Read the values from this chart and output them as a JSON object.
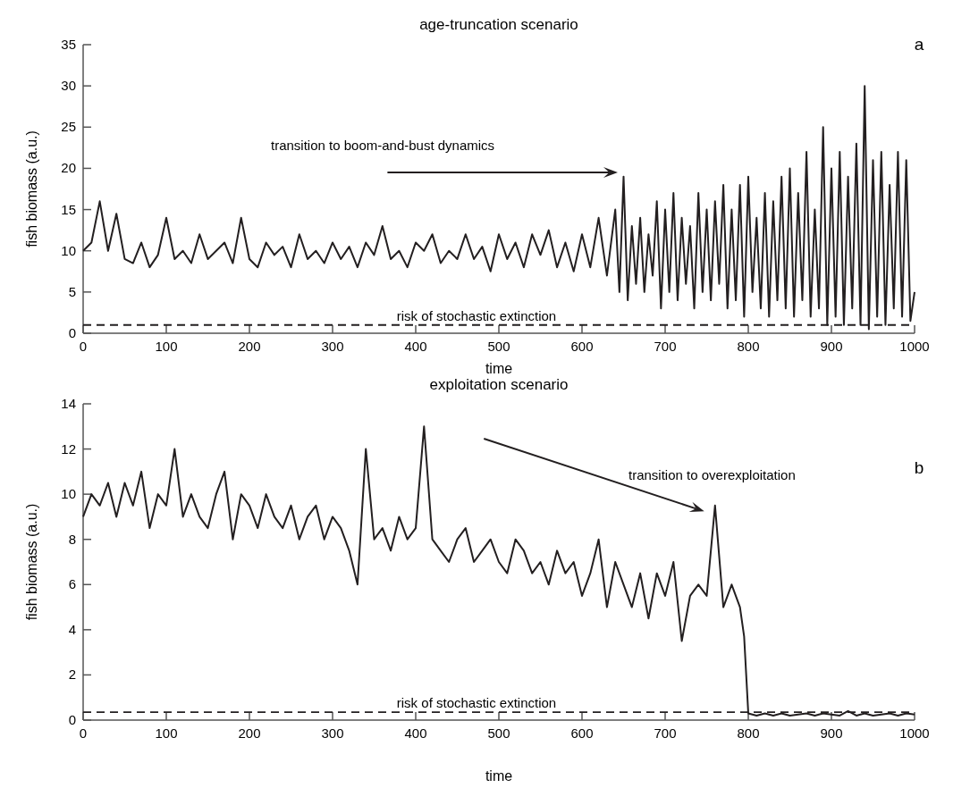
{
  "chart_data": [
    {
      "type": "line",
      "title": "age-truncation scenario",
      "xlabel": "time",
      "ylabel": "fish biomass (a.u.)",
      "annotations": [
        "transition to boom-and-bust dynamics",
        "a"
      ],
      "xlim": [
        0,
        1000
      ],
      "xticks": [
        0,
        100,
        200,
        300,
        400,
        500,
        600,
        700,
        800,
        900,
        1000
      ],
      "ylim": [
        0,
        35
      ],
      "yticks": [
        0,
        5,
        10,
        15,
        20,
        25,
        30,
        35
      ],
      "grid": false,
      "line_style": "solid",
      "ref_lines": [
        {
          "axis": "y",
          "value": 1,
          "label": "risk of stochastic extinction",
          "line_style": "dashed",
          "color": "#231f20"
        }
      ],
      "series": [
        {
          "color": "#231f20",
          "x": [
            0,
            10,
            20,
            30,
            40,
            50,
            60,
            70,
            80,
            90,
            100,
            110,
            120,
            130,
            140,
            150,
            160,
            170,
            180,
            190,
            200,
            210,
            220,
            230,
            240,
            250,
            260,
            270,
            280,
            290,
            300,
            310,
            320,
            330,
            340,
            350,
            360,
            370,
            380,
            390,
            400,
            410,
            420,
            430,
            440,
            450,
            460,
            470,
            480,
            490,
            500,
            510,
            520,
            530,
            540,
            550,
            560,
            570,
            580,
            590,
            600,
            610,
            620,
            630,
            640,
            645,
            650,
            655,
            660,
            665,
            670,
            675,
            680,
            685,
            690,
            695,
            700,
            705,
            710,
            715,
            720,
            725,
            730,
            735,
            740,
            745,
            750,
            755,
            760,
            765,
            770,
            775,
            780,
            785,
            790,
            795,
            800,
            805,
            810,
            815,
            820,
            825,
            830,
            835,
            840,
            845,
            850,
            855,
            860,
            865,
            870,
            875,
            880,
            885,
            890,
            895,
            900,
            905,
            910,
            915,
            920,
            925,
            930,
            935,
            940,
            945,
            950,
            955,
            960,
            965,
            970,
            975,
            980,
            985,
            990,
            995,
            1000
          ],
          "values": [
            10,
            11,
            16,
            10,
            14.5,
            9,
            8.5,
            11,
            8,
            9.5,
            14,
            9,
            10,
            8.5,
            12,
            9,
            10,
            11,
            8.5,
            14,
            9,
            8,
            11,
            9.5,
            10.5,
            8,
            12,
            9,
            10,
            8.5,
            11,
            9,
            10.5,
            8,
            11,
            9.5,
            13,
            9,
            10,
            8,
            11,
            10,
            12,
            8.5,
            10,
            9,
            12,
            9,
            10.5,
            7.5,
            12,
            9,
            11,
            8,
            12,
            9.5,
            12.5,
            8,
            11,
            7.5,
            12,
            8,
            14,
            7,
            15,
            5,
            19,
            4,
            13,
            6,
            14,
            5,
            12,
            7,
            16,
            3,
            15,
            5,
            17,
            4,
            14,
            6,
            13,
            3,
            17,
            5,
            15,
            4,
            16,
            6,
            18,
            3,
            15,
            4,
            18,
            2,
            19,
            5,
            14,
            3,
            17,
            2,
            16,
            4,
            19,
            3,
            20,
            2,
            17,
            4,
            22,
            2,
            15,
            3,
            25,
            1,
            20,
            2,
            22,
            1,
            19,
            3,
            23,
            1,
            30,
            0.5,
            21,
            2,
            22,
            1,
            18,
            3,
            22,
            2,
            21,
            1.5,
            5
          ]
        }
      ]
    },
    {
      "type": "line",
      "title": "exploitation scenario",
      "xlabel": "time",
      "ylabel": "fish biomass (a.u.)",
      "annotations": [
        "transition to overexploitation",
        "b"
      ],
      "xlim": [
        0,
        1000
      ],
      "xticks": [
        0,
        100,
        200,
        300,
        400,
        500,
        600,
        700,
        800,
        900,
        1000
      ],
      "ylim": [
        0,
        14
      ],
      "yticks": [
        0,
        2,
        4,
        6,
        8,
        10,
        12,
        14
      ],
      "grid": false,
      "line_style": "solid",
      "ref_lines": [
        {
          "axis": "y",
          "value": 0.35,
          "label": "risk of stochastic extinction",
          "line_style": "dashed",
          "color": "#231f20"
        }
      ],
      "series": [
        {
          "color": "#231f20",
          "x": [
            0,
            10,
            20,
            30,
            40,
            50,
            60,
            70,
            80,
            90,
            100,
            110,
            120,
            130,
            140,
            150,
            160,
            170,
            180,
            190,
            200,
            210,
            220,
            230,
            240,
            250,
            260,
            270,
            280,
            290,
            300,
            310,
            320,
            330,
            340,
            350,
            360,
            370,
            380,
            390,
            400,
            410,
            420,
            430,
            440,
            450,
            460,
            470,
            480,
            490,
            500,
            510,
            520,
            530,
            540,
            550,
            560,
            570,
            580,
            590,
            600,
            610,
            620,
            630,
            640,
            650,
            660,
            670,
            680,
            690,
            700,
            710,
            720,
            730,
            740,
            750,
            760,
            770,
            780,
            790,
            795,
            800,
            810,
            820,
            830,
            840,
            850,
            860,
            870,
            880,
            890,
            900,
            910,
            920,
            930,
            940,
            950,
            960,
            970,
            980,
            990,
            1000
          ],
          "values": [
            9,
            10,
            9.5,
            10.5,
            9,
            10.5,
            9.5,
            11,
            8.5,
            10,
            9.5,
            12,
            9,
            10,
            9,
            8.5,
            10,
            11,
            8,
            10,
            9.5,
            8.5,
            10,
            9,
            8.5,
            9.5,
            8,
            9,
            9.5,
            8,
            9,
            8.5,
            7.5,
            6,
            12,
            8,
            8.5,
            7.5,
            9,
            8,
            8.5,
            13,
            8,
            7.5,
            7,
            8,
            8.5,
            7,
            7.5,
            8,
            7,
            6.5,
            8,
            7.5,
            6.5,
            7,
            6,
            7.5,
            6.5,
            7,
            5.5,
            6.5,
            8,
            5,
            7,
            6,
            5,
            6.5,
            4.5,
            6.5,
            5.5,
            7,
            3.5,
            5.5,
            6,
            5.5,
            9.5,
            5,
            6,
            5,
            3.7,
            0.3,
            0.2,
            0.3,
            0.2,
            0.3,
            0.2,
            0.25,
            0.3,
            0.2,
            0.3,
            0.25,
            0.2,
            0.4,
            0.2,
            0.3,
            0.2,
            0.25,
            0.3,
            0.2,
            0.3,
            0.25
          ]
        }
      ]
    }
  ]
}
